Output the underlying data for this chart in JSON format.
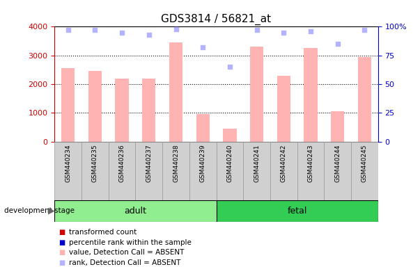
{
  "title": "GDS3814 / 56821_at",
  "samples": [
    "GSM440234",
    "GSM440235",
    "GSM440236",
    "GSM440237",
    "GSM440238",
    "GSM440239",
    "GSM440240",
    "GSM440241",
    "GSM440242",
    "GSM440243",
    "GSM440244",
    "GSM440245"
  ],
  "bar_values": [
    2550,
    2450,
    2200,
    2200,
    3450,
    950,
    450,
    3300,
    2300,
    3250,
    1050,
    2950
  ],
  "rank_values": [
    97,
    97,
    95,
    93,
    98,
    82,
    65,
    97,
    95,
    96,
    85,
    97
  ],
  "bar_color_absent": "#ffb3b3",
  "rank_color_absent": "#b3b3ff",
  "ylim_left": [
    0,
    4000
  ],
  "ylim_right": [
    0,
    100
  ],
  "yticks_left": [
    0,
    1000,
    2000,
    3000,
    4000
  ],
  "yticks_right": [
    0,
    25,
    50,
    75,
    100
  ],
  "yticklabels_right": [
    "0",
    "25",
    "50",
    "75",
    "100%"
  ],
  "left_axis_color": "#cc0000",
  "right_axis_color": "#0000cc",
  "adult_samples": 6,
  "fetal_samples": 6,
  "adult_label": "adult",
  "fetal_label": "fetal",
  "stage_label": "development stage",
  "adult_color": "#90ee90",
  "fetal_color": "#33cc55",
  "legend_items": [
    {
      "label": "transformed count",
      "color": "#cc0000"
    },
    {
      "label": "percentile rank within the sample",
      "color": "#0000cc"
    },
    {
      "label": "value, Detection Call = ABSENT",
      "color": "#ffb3b3"
    },
    {
      "label": "rank, Detection Call = ABSENT",
      "color": "#b3b3ff"
    }
  ],
  "bar_width": 0.5,
  "background_color": "#ffffff",
  "sample_box_color": "#d0d0d0",
  "sample_box_edge": "#999999"
}
